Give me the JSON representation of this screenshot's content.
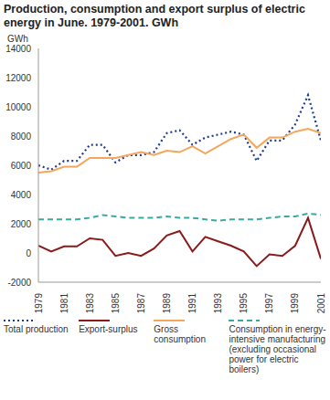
{
  "chart_data": {
    "type": "line",
    "title": "Production, consumption and export surplus of electric energy in June. 1979-2001. GWh",
    "ylabel": "GWh",
    "x": [
      1979,
      1980,
      1981,
      1982,
      1983,
      1984,
      1985,
      1986,
      1987,
      1988,
      1989,
      1990,
      1991,
      1992,
      1993,
      1994,
      1995,
      1996,
      1997,
      1998,
      1999,
      2000,
      2001
    ],
    "xlim": [
      1979,
      2001
    ],
    "xticks": [
      1979,
      1981,
      1983,
      1985,
      1987,
      1989,
      1991,
      1993,
      1995,
      1997,
      1999,
      2001
    ],
    "ylim": [
      -2000,
      14000
    ],
    "yticks": [
      -2000,
      0,
      2000,
      4000,
      6000,
      8000,
      10000,
      12000,
      14000
    ],
    "grid": false,
    "legend": "bottom",
    "series": [
      {
        "name": "Total production",
        "color": "#1f3d8c",
        "line_style": "dotted",
        "values": [
          6000,
          5700,
          6300,
          6300,
          7400,
          7400,
          6200,
          6700,
          6700,
          6900,
          8200,
          8400,
          7400,
          7900,
          8100,
          8300,
          8100,
          6300,
          7700,
          7700,
          8800,
          10800,
          7700
        ]
      },
      {
        "name": "Export-surplus",
        "color": "#8b1a1a",
        "line_style": "solid",
        "values": [
          500,
          100,
          450,
          450,
          1000,
          900,
          -200,
          0,
          -200,
          300,
          1200,
          1500,
          100,
          1100,
          800,
          500,
          100,
          -900,
          -100,
          -200,
          500,
          2400,
          -400
        ]
      },
      {
        "name": "Gross consumption",
        "color": "#f5a65b",
        "line_style": "solid",
        "values": [
          5500,
          5600,
          5900,
          5900,
          6500,
          6500,
          6500,
          6700,
          6900,
          6700,
          7000,
          6900,
          7300,
          6800,
          7300,
          7800,
          8100,
          7200,
          7900,
          7900,
          8300,
          8500,
          8200
        ]
      },
      {
        "name": "Consumption in energy-intensive manufacturing (excluding occasional power for electric boilers)",
        "color": "#3aa9a0",
        "line_style": "dashed",
        "values": [
          2300,
          2300,
          2300,
          2300,
          2400,
          2600,
          2500,
          2400,
          2400,
          2400,
          2500,
          2400,
          2400,
          2300,
          2200,
          2300,
          2300,
          2300,
          2400,
          2500,
          2500,
          2700,
          2600
        ]
      }
    ]
  }
}
